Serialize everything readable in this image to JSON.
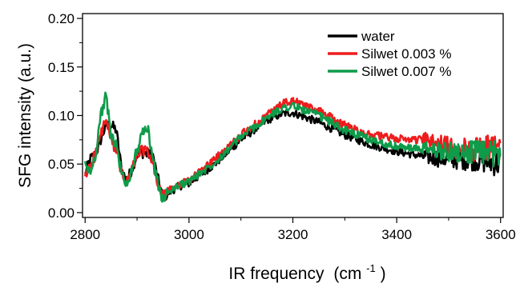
{
  "chart_data": {
    "type": "line",
    "xlabel": "IR frequency",
    "xlabel_unit_prefix": "(cm",
    "xlabel_unit_exp": "-1",
    "xlabel_unit_suffix": ")",
    "ylabel": "SFG intensity (a.u.)",
    "xlim": [
      2795,
      3605
    ],
    "ylim": [
      -0.005,
      0.205
    ],
    "xticks": [
      2800,
      3000,
      3200,
      3400,
      3600
    ],
    "xtick_labels": [
      "2800",
      "3000",
      "3200",
      "3400",
      "3600"
    ],
    "yticks": [
      0.0,
      0.05,
      0.1,
      0.15,
      0.2
    ],
    "ytick_labels": [
      "0.00",
      "0.05",
      "0.10",
      "0.15",
      "0.20"
    ],
    "legend_position": "top-right",
    "series": [
      {
        "name": "water",
        "color": "#000000",
        "x": [
          2800,
          2810,
          2820,
          2830,
          2840,
          2850,
          2860,
          2870,
          2880,
          2890,
          2900,
          2910,
          2920,
          2930,
          2940,
          2950,
          2960,
          2980,
          3000,
          3050,
          3100,
          3150,
          3180,
          3200,
          3250,
          3300,
          3350,
          3400,
          3450,
          3500,
          3550,
          3600
        ],
        "y": [
          0.04,
          0.055,
          0.06,
          0.075,
          0.09,
          0.09,
          0.085,
          0.045,
          0.032,
          0.045,
          0.06,
          0.062,
          0.06,
          0.06,
          0.035,
          0.016,
          0.02,
          0.027,
          0.03,
          0.05,
          0.075,
          0.095,
          0.102,
          0.103,
          0.093,
          0.08,
          0.07,
          0.063,
          0.058,
          0.055,
          0.055,
          0.05
        ]
      },
      {
        "name": "Silwet 0.003 %",
        "color": "#ee1c1c",
        "x": [
          2800,
          2810,
          2820,
          2830,
          2840,
          2850,
          2860,
          2870,
          2880,
          2890,
          2900,
          2910,
          2920,
          2930,
          2940,
          2950,
          2960,
          2980,
          3000,
          3050,
          3100,
          3150,
          3180,
          3200,
          3250,
          3300,
          3350,
          3400,
          3450,
          3500,
          3550,
          3600
        ],
        "y": [
          0.035,
          0.05,
          0.06,
          0.08,
          0.095,
          0.075,
          0.065,
          0.04,
          0.03,
          0.045,
          0.058,
          0.065,
          0.062,
          0.05,
          0.03,
          0.015,
          0.022,
          0.029,
          0.033,
          0.055,
          0.08,
          0.1,
          0.112,
          0.115,
          0.105,
          0.09,
          0.08,
          0.076,
          0.075,
          0.068,
          0.065,
          0.07
        ]
      },
      {
        "name": "Silwet 0.007 %",
        "color": "#0e9b4a",
        "x": [
          2800,
          2810,
          2820,
          2830,
          2840,
          2850,
          2860,
          2870,
          2880,
          2890,
          2900,
          2910,
          2920,
          2930,
          2940,
          2950,
          2960,
          2980,
          3000,
          3050,
          3100,
          3150,
          3180,
          3200,
          3250,
          3300,
          3350,
          3400,
          3450,
          3500,
          3550,
          3600
        ],
        "y": [
          0.05,
          0.04,
          0.06,
          0.1,
          0.12,
          0.08,
          0.07,
          0.04,
          0.028,
          0.045,
          0.065,
          0.08,
          0.088,
          0.058,
          0.03,
          0.013,
          0.021,
          0.028,
          0.032,
          0.052,
          0.078,
          0.097,
          0.108,
          0.11,
          0.1,
          0.085,
          0.075,
          0.068,
          0.065,
          0.063,
          0.062,
          0.06
        ]
      }
    ]
  }
}
